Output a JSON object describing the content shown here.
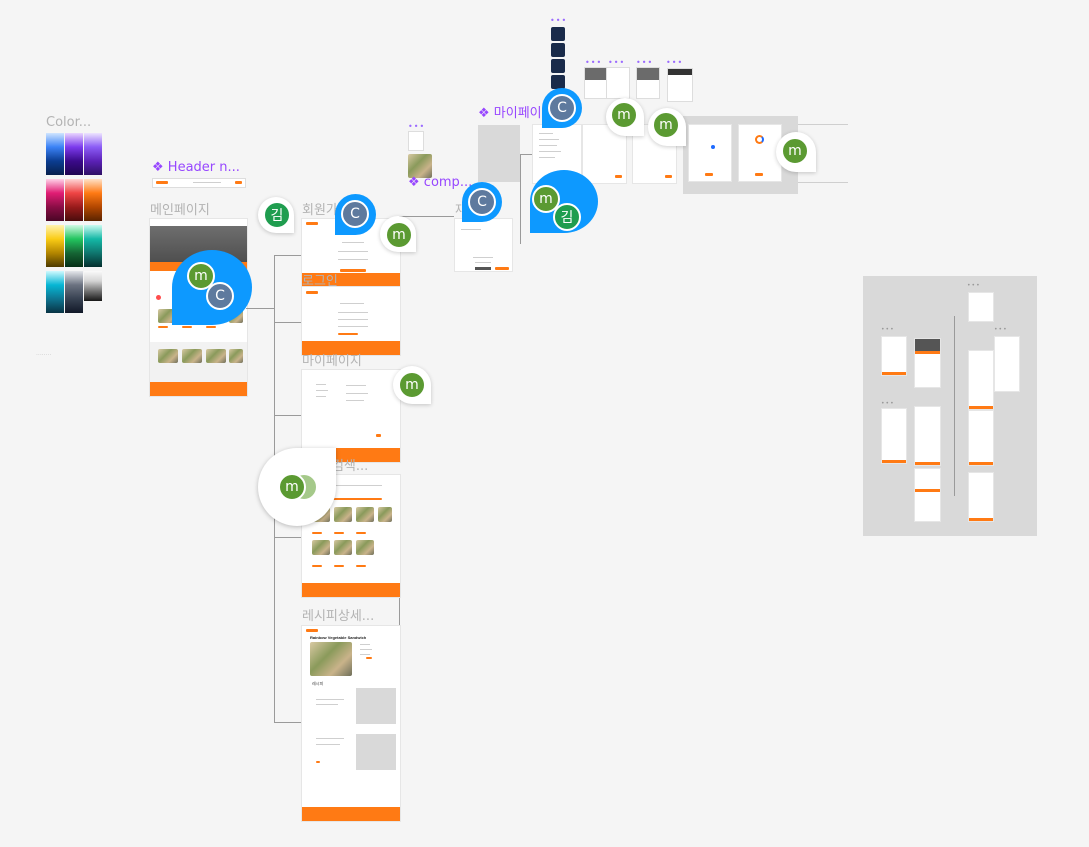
{
  "labels": {
    "color": "Color...",
    "header_component": "Header n...",
    "main_page": "메인페이지",
    "signup": "회원가",
    "login": "로그인",
    "mypage": "마이페이지",
    "recipe_search": "피검색...",
    "recipe_detail": "레시피상세...",
    "mypage_component": "마이페이",
    "comp_component": "comp...",
    "misc_j": "재",
    "misc_small": "········"
  },
  "recipe": {
    "title": "Rainbow Vegetable Sandwich",
    "section": "레시피"
  },
  "avatars": {
    "m": "m",
    "c": "C",
    "kim": "김"
  },
  "colors": {
    "accent": "#ff7a14",
    "selection_blue": "#0d99ff",
    "avatar_green": "#5b9a32",
    "avatar_slate": "#5e7a9e",
    "avatar_kim": "#1f9d4f",
    "component_purple": "#9747ff"
  },
  "icons": {
    "component": "component-diamond-icon"
  }
}
